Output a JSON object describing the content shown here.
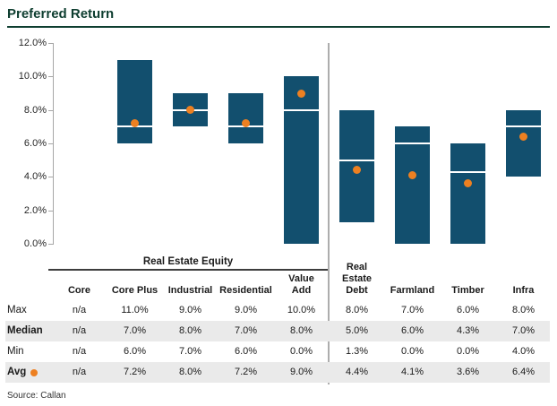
{
  "title": "Preferred Return",
  "source": "Source: Callan",
  "colors": {
    "title_green": "#0e3e30",
    "bar_blue": "#124f6e",
    "avg_orange": "#ed8021",
    "row_shade": "#eaeaea",
    "axis_gray": "#a6a6a6",
    "divider_gray": "#adadad"
  },
  "chart_data": {
    "type": "bar",
    "subtype": "floating-range-bars",
    "title": "Preferred Return",
    "categories": [
      "Core",
      "Core Plus",
      "Industrial",
      "Residential",
      "Value Add",
      "Real Estate Debt",
      "Farmland",
      "Timber",
      "Infra"
    ],
    "group_label": "Real Estate Equity",
    "group_span_categories": [
      "Core",
      "Core Plus",
      "Industrial",
      "Residential",
      "Value Add"
    ],
    "series": [
      {
        "name": "Max",
        "values": [
          null,
          11.0,
          9.0,
          9.0,
          10.0,
          8.0,
          7.0,
          6.0,
          8.0
        ]
      },
      {
        "name": "Median",
        "values": [
          null,
          7.0,
          8.0,
          7.0,
          8.0,
          5.0,
          6.0,
          4.3,
          7.0
        ]
      },
      {
        "name": "Min",
        "values": [
          null,
          6.0,
          7.0,
          6.0,
          0.0,
          1.3,
          0.0,
          0.0,
          4.0
        ]
      },
      {
        "name": "Avg",
        "values": [
          null,
          7.2,
          8.0,
          7.2,
          9.0,
          4.4,
          4.1,
          3.6,
          6.4
        ]
      }
    ],
    "ylim": [
      0,
      12
    ],
    "ytick_step": 2,
    "ytick_labels": [
      "0.0%",
      "2.0%",
      "4.0%",
      "6.0%",
      "8.0%",
      "10.0%",
      "12.0%"
    ],
    "grid": false,
    "legend_position": "none",
    "median_marker": "white line",
    "avg_marker": "orange dot"
  },
  "table": {
    "group_header": "Real Estate Equity",
    "column_header_lines": [
      [
        "Core"
      ],
      [
        "Core Plus"
      ],
      [
        "Industrial"
      ],
      [
        "Residential"
      ],
      [
        "Value",
        "Add"
      ],
      [
        "Real",
        "Estate",
        "Debt"
      ],
      [
        "Farmland"
      ],
      [
        "Timber"
      ],
      [
        "Infra"
      ]
    ],
    "row_labels": [
      "Max",
      "Median",
      "Min",
      "Avg"
    ],
    "bold_rows": [
      "Median",
      "Avg"
    ],
    "rows": [
      [
        "n/a",
        "11.0%",
        "9.0%",
        "9.0%",
        "10.0%",
        "8.0%",
        "7.0%",
        "6.0%",
        "8.0%"
      ],
      [
        "n/a",
        "7.0%",
        "8.0%",
        "7.0%",
        "8.0%",
        "5.0%",
        "6.0%",
        "4.3%",
        "7.0%"
      ],
      [
        "n/a",
        "6.0%",
        "7.0%",
        "6.0%",
        "0.0%",
        "1.3%",
        "0.0%",
        "0.0%",
        "4.0%"
      ],
      [
        "n/a",
        "7.2%",
        "8.0%",
        "7.2%",
        "9.0%",
        "4.4%",
        "4.1%",
        "3.6%",
        "6.4%"
      ]
    ]
  }
}
